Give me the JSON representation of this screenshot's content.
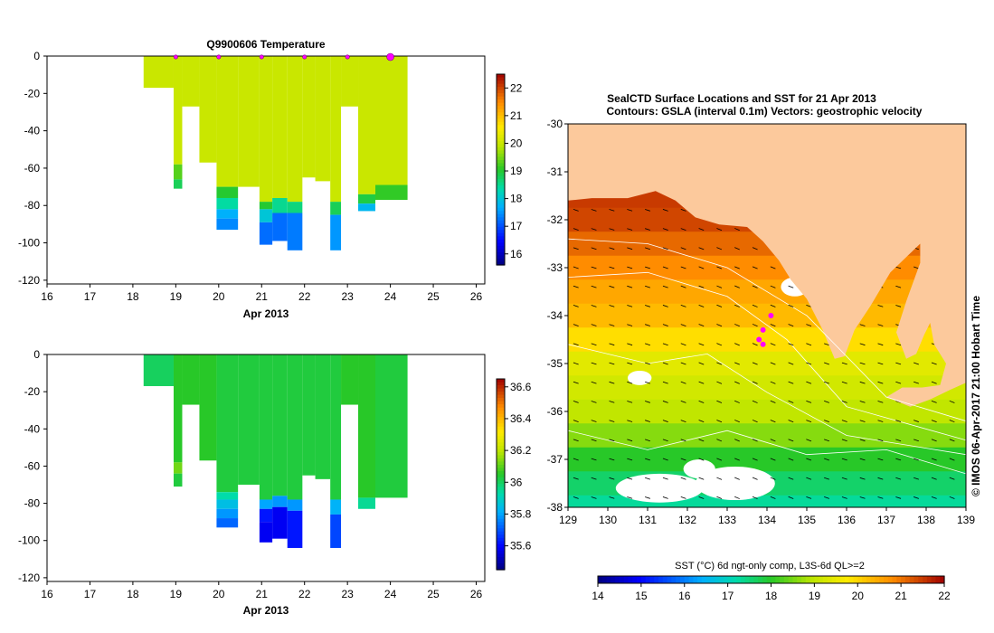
{
  "figure": {
    "colors": {
      "land": "#fcc99c",
      "water_contour": "#ffffff",
      "arrow": "#000000",
      "profile_marker": "#ff00ff"
    }
  },
  "chart_data": [
    {
      "id": "temperature-profile",
      "type": "heatmap",
      "title": "Q9900606  Temperature",
      "xlabel": "Apr 2013",
      "ylabel": "",
      "xlim": [
        16,
        26.2
      ],
      "ylim": [
        -122,
        0
      ],
      "x_ticks": [
        "16",
        "17",
        "18",
        "19",
        "20",
        "21",
        "22",
        "23",
        "24",
        "25",
        "26"
      ],
      "y_ticks": [
        "0",
        "-20",
        "-40",
        "-60",
        "-80",
        "-100",
        "-120"
      ],
      "profile_markers": [
        19,
        20,
        21,
        22,
        23,
        24
      ],
      "colorbar": {
        "min": 15.6,
        "max": 22.5,
        "ticks": [
          "16",
          "17",
          "18",
          "19",
          "20",
          "21",
          "22"
        ]
      },
      "columns": [
        {
          "x0": 18.25,
          "x1": 18.95,
          "bottom": -17,
          "layers": [
            {
              "d": -17,
              "v": 20.0
            }
          ]
        },
        {
          "x0": 18.95,
          "x1": 19.15,
          "bottom": -71,
          "layers": [
            {
              "d": -58,
              "v": 20.0
            },
            {
              "d": -66,
              "v": 19.3
            },
            {
              "d": -71,
              "v": 18.8
            }
          ]
        },
        {
          "x0": 19.15,
          "x1": 19.55,
          "bottom": -27,
          "layers": [
            {
              "d": -27,
              "v": 20.0
            }
          ]
        },
        {
          "x0": 19.55,
          "x1": 19.95,
          "bottom": -57,
          "layers": [
            {
              "d": -57,
              "v": 20.0
            }
          ]
        },
        {
          "x0": 19.95,
          "x1": 20.45,
          "bottom": -93,
          "layers": [
            {
              "d": -70,
              "v": 20.0
            },
            {
              "d": -76,
              "v": 19.0
            },
            {
              "d": -82,
              "v": 18.4
            },
            {
              "d": -87,
              "v": 17.7
            },
            {
              "d": -93,
              "v": 17.4
            }
          ]
        },
        {
          "x0": 20.45,
          "x1": 20.95,
          "bottom": -70,
          "layers": [
            {
              "d": -70,
              "v": 20.0
            }
          ]
        },
        {
          "x0": 20.95,
          "x1": 21.25,
          "bottom": -101,
          "layers": [
            {
              "d": -78,
              "v": 20.0
            },
            {
              "d": -82,
              "v": 19.0
            },
            {
              "d": -89,
              "v": 18.0
            },
            {
              "d": -101,
              "v": 17.2
            }
          ]
        },
        {
          "x0": 21.25,
          "x1": 21.6,
          "bottom": -99,
          "layers": [
            {
              "d": -76,
              "v": 20.0
            },
            {
              "d": -84,
              "v": 18.5
            },
            {
              "d": -99,
              "v": 17.2
            }
          ]
        },
        {
          "x0": 21.6,
          "x1": 21.95,
          "bottom": -104,
          "layers": [
            {
              "d": -78,
              "v": 20.0
            },
            {
              "d": -84,
              "v": 18.6
            },
            {
              "d": -104,
              "v": 17.3
            }
          ]
        },
        {
          "x0": 21.95,
          "x1": 22.25,
          "bottom": -65,
          "layers": [
            {
              "d": -65,
              "v": 20.0
            }
          ]
        },
        {
          "x0": 22.25,
          "x1": 22.6,
          "bottom": -67,
          "layers": [
            {
              "d": -67,
              "v": 20.0
            }
          ]
        },
        {
          "x0": 22.6,
          "x1": 22.85,
          "bottom": -104,
          "layers": [
            {
              "d": -78,
              "v": 20.0
            },
            {
              "d": -85,
              "v": 18.8
            },
            {
              "d": -104,
              "v": 17.5
            }
          ]
        },
        {
          "x0": 22.85,
          "x1": 23.25,
          "bottom": -27,
          "layers": [
            {
              "d": -27,
              "v": 20.0
            }
          ]
        },
        {
          "x0": 23.25,
          "x1": 23.65,
          "bottom": -83,
          "layers": [
            {
              "d": -74,
              "v": 20.0
            },
            {
              "d": -79,
              "v": 18.9
            },
            {
              "d": -83,
              "v": 17.8
            }
          ]
        },
        {
          "x0": 23.65,
          "x1": 24.4,
          "bottom": -77,
          "layers": [
            {
              "d": -69,
              "v": 20.0
            },
            {
              "d": -77,
              "v": 19.1
            }
          ]
        }
      ]
    },
    {
      "id": "salinity-profile",
      "type": "heatmap",
      "title": "",
      "xlabel": "Apr 2013",
      "ylabel": "",
      "xlim": [
        16,
        26.2
      ],
      "ylim": [
        -122,
        0
      ],
      "x_ticks": [
        "16",
        "17",
        "18",
        "19",
        "20",
        "21",
        "22",
        "23",
        "24",
        "25",
        "26"
      ],
      "y_ticks": [
        "0",
        "-20",
        "-40",
        "-60",
        "-80",
        "-100",
        "-120"
      ],
      "colorbar": {
        "min": 35.45,
        "max": 36.65,
        "ticks": [
          "35.6",
          "35.8",
          "36",
          "36.2",
          "36.4",
          "36.6"
        ]
      },
      "columns": [
        {
          "x0": 18.25,
          "x1": 18.95,
          "bottom": -17,
          "layers": [
            {
              "d": -17,
              "v": 36.0
            }
          ]
        },
        {
          "x0": 18.95,
          "x1": 19.15,
          "bottom": -71,
          "layers": [
            {
              "d": -58,
              "v": 36.05
            },
            {
              "d": -64,
              "v": 36.12
            },
            {
              "d": -71,
              "v": 36.03
            }
          ]
        },
        {
          "x0": 19.15,
          "x1": 19.55,
          "bottom": -27,
          "layers": [
            {
              "d": -27,
              "v": 36.05
            }
          ]
        },
        {
          "x0": 19.55,
          "x1": 19.95,
          "bottom": -57,
          "layers": [
            {
              "d": -57,
              "v": 36.05
            }
          ]
        },
        {
          "x0": 19.95,
          "x1": 20.45,
          "bottom": -93,
          "layers": [
            {
              "d": -74,
              "v": 36.03
            },
            {
              "d": -78,
              "v": 35.93
            },
            {
              "d": -83,
              "v": 35.85
            },
            {
              "d": -88,
              "v": 35.78
            },
            {
              "d": -93,
              "v": 35.72
            }
          ]
        },
        {
          "x0": 20.45,
          "x1": 20.95,
          "bottom": -70,
          "layers": [
            {
              "d": -70,
              "v": 36.03
            }
          ]
        },
        {
          "x0": 20.95,
          "x1": 21.25,
          "bottom": -101,
          "layers": [
            {
              "d": -78,
              "v": 36.03
            },
            {
              "d": -83,
              "v": 35.8
            },
            {
              "d": -90,
              "v": 35.62
            },
            {
              "d": -101,
              "v": 35.58
            }
          ]
        },
        {
          "x0": 21.25,
          "x1": 21.6,
          "bottom": -99,
          "layers": [
            {
              "d": -76,
              "v": 36.03
            },
            {
              "d": -82,
              "v": 35.78
            },
            {
              "d": -99,
              "v": 35.58
            }
          ]
        },
        {
          "x0": 21.6,
          "x1": 21.95,
          "bottom": -104,
          "layers": [
            {
              "d": -78,
              "v": 36.03
            },
            {
              "d": -84,
              "v": 35.78
            },
            {
              "d": -104,
              "v": 35.62
            }
          ]
        },
        {
          "x0": 21.95,
          "x1": 22.25,
          "bottom": -65,
          "layers": [
            {
              "d": -65,
              "v": 36.03
            }
          ]
        },
        {
          "x0": 22.25,
          "x1": 22.6,
          "bottom": -67,
          "layers": [
            {
              "d": -67,
              "v": 36.03
            }
          ]
        },
        {
          "x0": 22.6,
          "x1": 22.85,
          "bottom": -104,
          "layers": [
            {
              "d": -78,
              "v": 36.03
            },
            {
              "d": -86,
              "v": 35.82
            },
            {
              "d": -104,
              "v": 35.68
            }
          ]
        },
        {
          "x0": 22.85,
          "x1": 23.25,
          "bottom": -27,
          "layers": [
            {
              "d": -27,
              "v": 36.05
            }
          ]
        },
        {
          "x0": 23.25,
          "x1": 23.65,
          "bottom": -83,
          "layers": [
            {
              "d": -77,
              "v": 36.05
            },
            {
              "d": -83,
              "v": 35.95
            }
          ]
        },
        {
          "x0": 23.65,
          "x1": 24.4,
          "bottom": -77,
          "layers": [
            {
              "d": -77,
              "v": 36.03
            }
          ]
        }
      ]
    },
    {
      "id": "sst-map",
      "type": "heatmap",
      "title": "SealCTD Surface Locations and SST for 21 Apr 2013",
      "subtitle": "Contours: GSLA (interval 0.1m) Vectors: geostrophic velocity",
      "xlabel": "",
      "ylabel": "",
      "xlim": [
        129,
        139
      ],
      "ylim": [
        -38,
        -30
      ],
      "x_ticks": [
        "129",
        "130",
        "131",
        "132",
        "133",
        "134",
        "135",
        "136",
        "137",
        "138",
        "139"
      ],
      "y_ticks": [
        "-30",
        "-31",
        "-32",
        "-33",
        "-34",
        "-35",
        "-36",
        "-37",
        "-38"
      ],
      "side_label": "© IMOS 06-Apr-2017 21:00 Hobart Time",
      "colorbar": {
        "label": "SST (°C) 6d ngt-only comp, L3S-6d QL>=2",
        "min": 14,
        "max": 22,
        "ticks": [
          "14",
          "15",
          "16",
          "17",
          "18",
          "19",
          "20",
          "21",
          "22"
        ]
      },
      "sst_rows": [
        {
          "lat": -31.5,
          "sst": 21.5
        },
        {
          "lat": -32.0,
          "sst": 21.4
        },
        {
          "lat": -32.5,
          "sst": 21.1
        },
        {
          "lat": -33.0,
          "sst": 20.8
        },
        {
          "lat": -33.5,
          "sst": 20.5
        },
        {
          "lat": -34.0,
          "sst": 20.3
        },
        {
          "lat": -34.5,
          "sst": 19.9
        },
        {
          "lat": -35.0,
          "sst": 19.4
        },
        {
          "lat": -35.5,
          "sst": 19.2
        },
        {
          "lat": -36.0,
          "sst": 19.0
        },
        {
          "lat": -36.5,
          "sst": 18.6
        },
        {
          "lat": -37.0,
          "sst": 18.0
        },
        {
          "lat": -37.5,
          "sst": 17.6
        },
        {
          "lat": -38.0,
          "sst": 17.3
        }
      ],
      "seal_locations": [
        {
          "lon": 134.1,
          "lat": -34.0
        },
        {
          "lon": 133.9,
          "lat": -34.3
        },
        {
          "lon": 133.8,
          "lat": -34.5
        },
        {
          "lon": 133.9,
          "lat": -34.6
        }
      ]
    }
  ]
}
